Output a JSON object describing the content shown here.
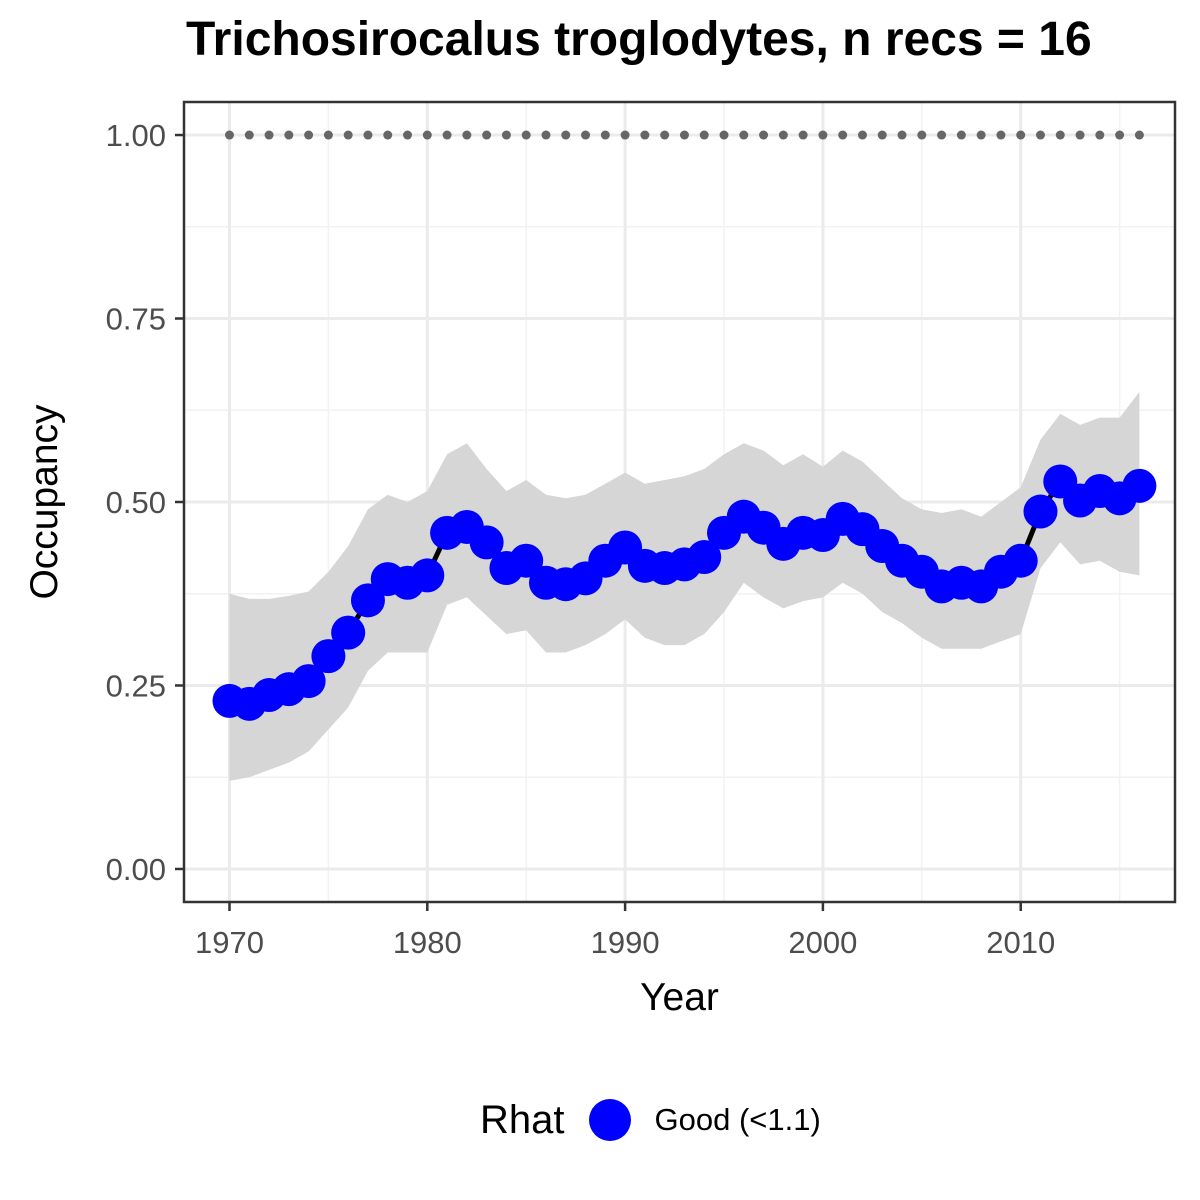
{
  "chart_data": {
    "type": "line",
    "title": "Trichosirocalus troglodytes, n recs = 16",
    "xlabel": "Year",
    "ylabel": "Occupancy",
    "xlim": [
      1967.7,
      2017.8
    ],
    "ylim": [
      -0.045,
      1.045
    ],
    "x_ticks": [
      {
        "value": 1970,
        "label": "1970"
      },
      {
        "value": 1980,
        "label": "1980"
      },
      {
        "value": 1990,
        "label": "1990"
      },
      {
        "value": 2000,
        "label": "2000"
      },
      {
        "value": 2010,
        "label": "2010"
      }
    ],
    "y_ticks": [
      {
        "value": 0,
        "label": "0.00"
      },
      {
        "value": 0.25,
        "label": "0.25"
      },
      {
        "value": 0.5,
        "label": "0.50"
      },
      {
        "value": 0.75,
        "label": "0.75"
      },
      {
        "value": 1,
        "label": "1.00"
      }
    ],
    "grid": true,
    "x": [
      1970,
      1971,
      1972,
      1973,
      1974,
      1975,
      1976,
      1977,
      1978,
      1979,
      1980,
      1981,
      1982,
      1983,
      1984,
      1985,
      1986,
      1987,
      1988,
      1989,
      1990,
      1991,
      1992,
      1993,
      1994,
      1995,
      1996,
      1997,
      1998,
      1999,
      2000,
      2001,
      2002,
      2003,
      2004,
      2005,
      2006,
      2007,
      2008,
      2009,
      2010,
      2011,
      2012,
      2013,
      2014,
      2015,
      2016
    ],
    "series": [
      {
        "name": "Good (<1.1)",
        "color": "#0000ff",
        "y": [
          0.229,
          0.225,
          0.237,
          0.245,
          0.256,
          0.29,
          0.322,
          0.366,
          0.395,
          0.39,
          0.4,
          0.458,
          0.466,
          0.445,
          0.41,
          0.42,
          0.39,
          0.388,
          0.396,
          0.42,
          0.438,
          0.413,
          0.41,
          0.415,
          0.425,
          0.458,
          0.48,
          0.465,
          0.443,
          0.458,
          0.455,
          0.477,
          0.463,
          0.44,
          0.42,
          0.405,
          0.385,
          0.39,
          0.385,
          0.405,
          0.42,
          0.487,
          0.528,
          0.502,
          0.515,
          0.505,
          0.522
        ],
        "lower": [
          0.12,
          0.125,
          0.135,
          0.145,
          0.16,
          0.19,
          0.22,
          0.27,
          0.295,
          0.295,
          0.295,
          0.36,
          0.37,
          0.345,
          0.32,
          0.325,
          0.295,
          0.295,
          0.305,
          0.32,
          0.34,
          0.315,
          0.305,
          0.305,
          0.32,
          0.35,
          0.39,
          0.37,
          0.355,
          0.365,
          0.37,
          0.39,
          0.375,
          0.35,
          0.335,
          0.315,
          0.3,
          0.3,
          0.3,
          0.31,
          0.32,
          0.41,
          0.445,
          0.415,
          0.42,
          0.405,
          0.4
        ],
        "upper": [
          0.375,
          0.368,
          0.368,
          0.372,
          0.378,
          0.405,
          0.44,
          0.49,
          0.51,
          0.5,
          0.515,
          0.565,
          0.58,
          0.545,
          0.515,
          0.53,
          0.51,
          0.505,
          0.51,
          0.525,
          0.54,
          0.525,
          0.53,
          0.535,
          0.545,
          0.565,
          0.58,
          0.57,
          0.55,
          0.565,
          0.548,
          0.57,
          0.555,
          0.53,
          0.505,
          0.49,
          0.485,
          0.49,
          0.48,
          0.5,
          0.52,
          0.585,
          0.62,
          0.605,
          0.615,
          0.615,
          0.65
        ]
      }
    ],
    "reference_dots": {
      "value": 1.0,
      "color": "#666666"
    },
    "ribbon_color": "#d6d6d6",
    "legend": {
      "title": "Rhat",
      "position": "bottom",
      "entries": [
        {
          "label": "Good (<1.1)",
          "color": "#0000ff"
        }
      ]
    }
  }
}
